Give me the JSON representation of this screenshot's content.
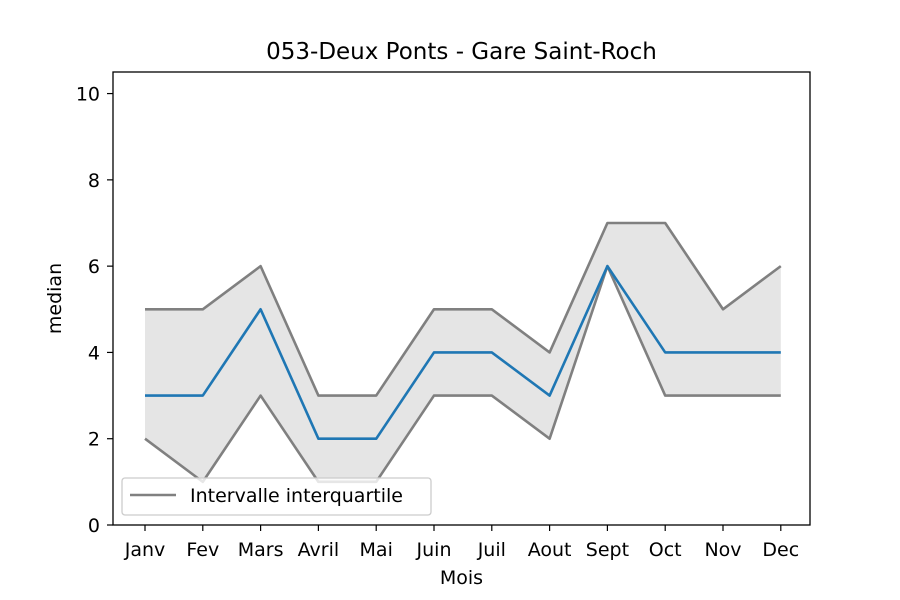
{
  "chart_data": {
    "type": "line",
    "title": "053-Deux Ponts - Gare Saint-Roch",
    "xlabel": "Mois",
    "ylabel": "median",
    "categories": [
      "Janv",
      "Fev",
      "Mars",
      "Avril",
      "Mai",
      "Juin",
      "Juil",
      "Aout",
      "Sept",
      "Oct",
      "Nov",
      "Dec"
    ],
    "ylim": [
      0,
      10.5
    ],
    "yticks": [
      0,
      2,
      4,
      6,
      8,
      10
    ],
    "grid": false,
    "legend_position": "lower-left",
    "series": [
      {
        "role": "median",
        "values": [
          3,
          3,
          5,
          2,
          2,
          4,
          4,
          3,
          6,
          4,
          4,
          4
        ],
        "color": "#1f77b4"
      },
      {
        "role": "upper-quartile",
        "values": [
          5,
          5,
          6,
          3,
          3,
          5,
          5,
          4,
          7,
          7,
          5,
          6
        ],
        "color": "#808080"
      },
      {
        "role": "lower-quartile",
        "values": [
          2,
          1,
          3,
          1,
          1,
          3,
          3,
          2,
          6,
          3,
          3,
          3
        ],
        "color": "#808080"
      }
    ],
    "band": {
      "fill": "#e5e5e5"
    },
    "legend": [
      {
        "label": "Intervalle interquartile",
        "color": "#808080"
      }
    ]
  }
}
